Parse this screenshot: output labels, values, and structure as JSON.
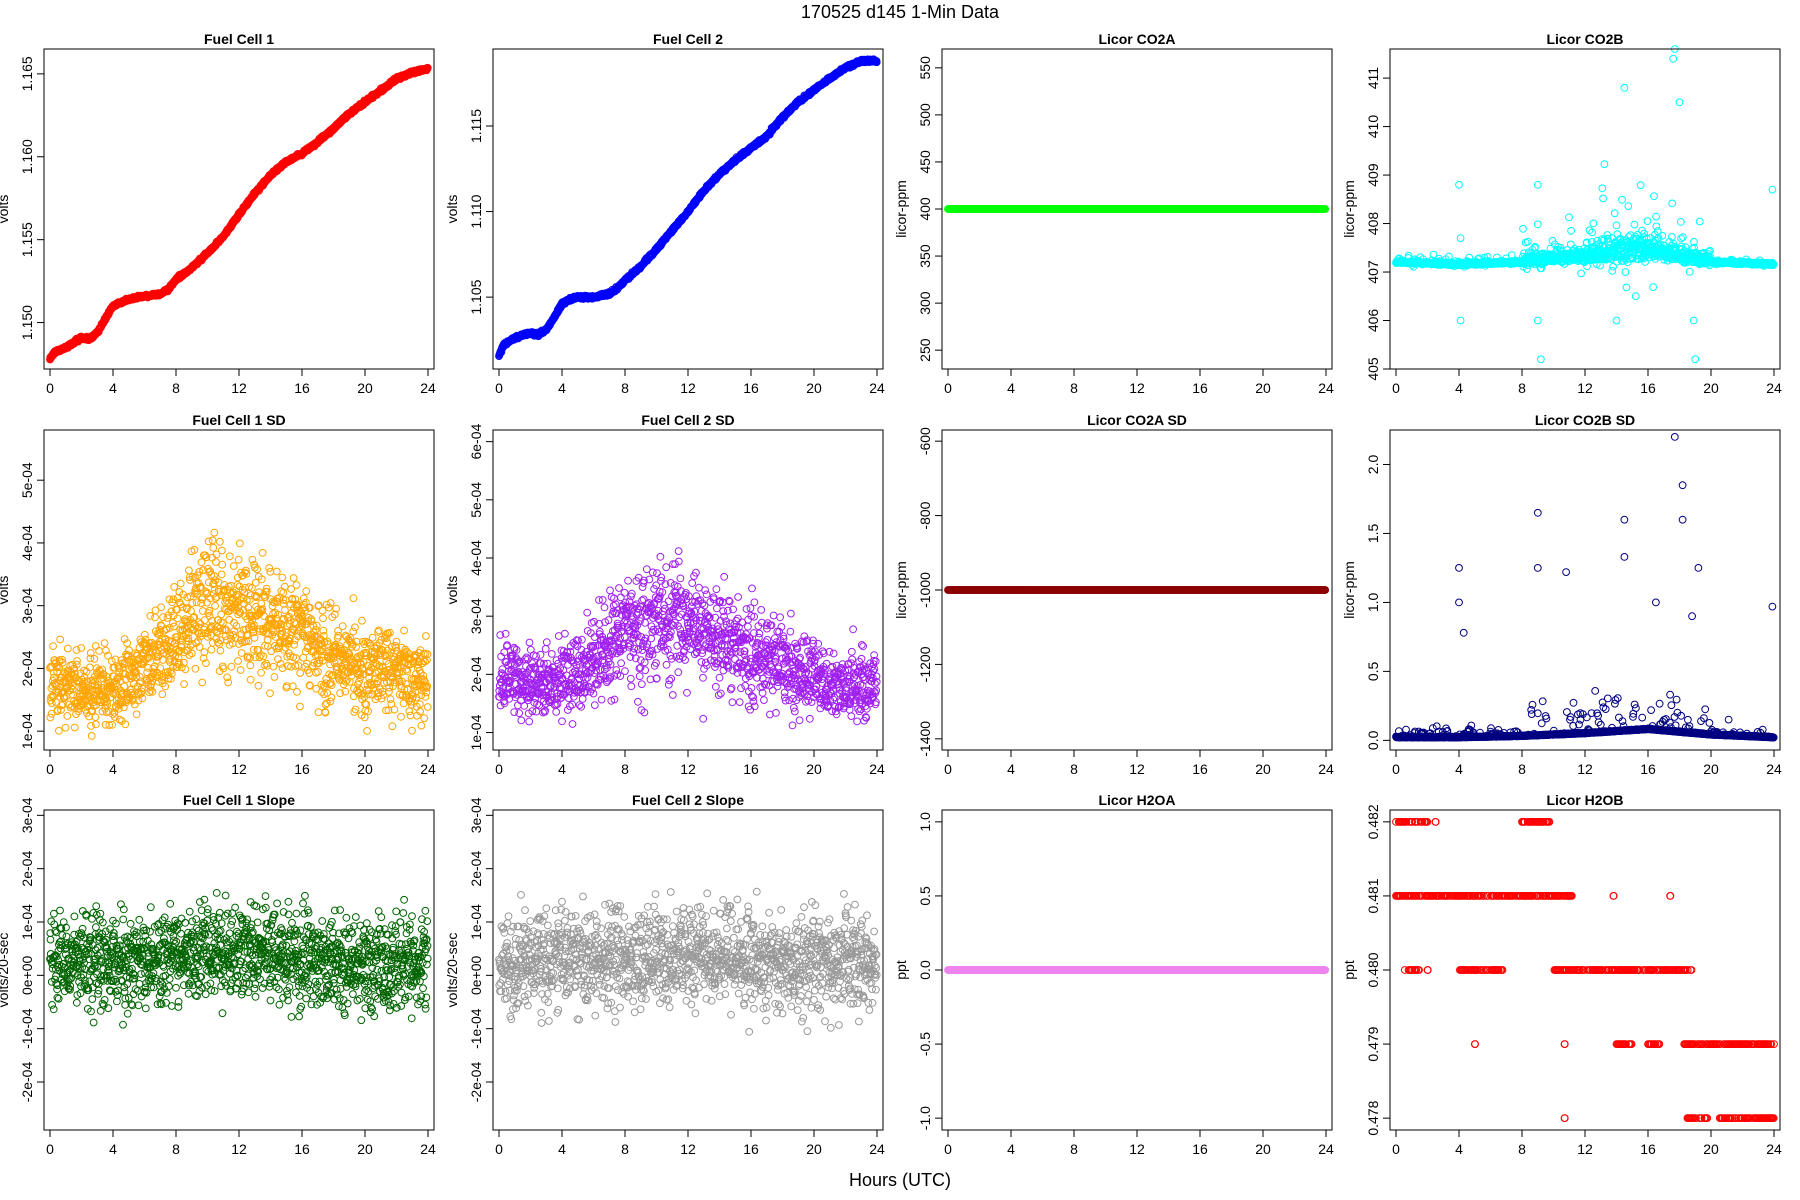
{
  "figure": {
    "title": "170525   d145   1-Min Data",
    "xlabel": "Hours (UTC)"
  },
  "chart_data": [
    {
      "type": "scatter",
      "title": "Fuel Cell 1",
      "ylabel": "volts",
      "color": "#ff0000",
      "xlim": [
        0,
        24
      ],
      "ylim": [
        1.1472,
        1.1665
      ],
      "x_ticks": [
        "0",
        "4",
        "8",
        "12",
        "16",
        "20",
        "24"
      ],
      "y_ticks": [
        "1.150",
        "1.155",
        "1.160",
        "1.165"
      ],
      "y_tick_values": [
        1.15,
        1.155,
        1.16,
        1.165
      ],
      "grid": false,
      "series": [
        {
          "x": [
            0,
            0.3,
            1,
            1.5,
            2,
            2.5,
            3,
            3.5,
            4,
            4.5,
            5,
            6,
            7,
            7.5,
            8,
            9,
            10,
            11,
            12,
            13,
            14,
            15,
            16,
            17,
            18,
            19,
            20,
            21,
            22,
            23,
            24
          ],
          "y": [
            1.1478,
            1.1482,
            1.1485,
            1.1488,
            1.1491,
            1.149,
            1.1494,
            1.1502,
            1.151,
            1.1512,
            1.1514,
            1.1516,
            1.1517,
            1.152,
            1.1526,
            1.1533,
            1.1542,
            1.1552,
            1.1565,
            1.1578,
            1.1589,
            1.1597,
            1.1602,
            1.1609,
            1.1617,
            1.1626,
            1.1633,
            1.164,
            1.1647,
            1.1651,
            1.1653
          ]
        }
      ]
    },
    {
      "type": "scatter",
      "title": "Fuel Cell 2",
      "ylabel": "volts",
      "color": "#0000ff",
      "xlim": [
        0,
        24
      ],
      "ylim": [
        1.1008,
        1.1195
      ],
      "x_ticks": [
        "0",
        "4",
        "8",
        "12",
        "16",
        "20",
        "24"
      ],
      "y_ticks": [
        "1.105",
        "1.110",
        "1.115"
      ],
      "y_tick_values": [
        1.105,
        1.11,
        1.115
      ],
      "grid": false,
      "series": [
        {
          "x": [
            0,
            0.3,
            1,
            1.5,
            2,
            2.5,
            3,
            3.5,
            4,
            4.5,
            5,
            6,
            7,
            7.5,
            8,
            9,
            10,
            11,
            12,
            13,
            14,
            15,
            16,
            17,
            18,
            19,
            20,
            21,
            22,
            23,
            24
          ],
          "y": [
            1.1016,
            1.1022,
            1.1026,
            1.1028,
            1.1029,
            1.1028,
            1.1031,
            1.1038,
            1.1046,
            1.1049,
            1.105,
            1.105,
            1.1052,
            1.1055,
            1.106,
            1.1068,
            1.1078,
            1.1089,
            1.11,
            1.1112,
            1.1122,
            1.113,
            1.1137,
            1.1144,
            1.1155,
            1.1164,
            1.1171,
            1.1178,
            1.1184,
            1.1188,
            1.1188
          ]
        }
      ]
    },
    {
      "type": "scatter",
      "title": "Licor CO2A",
      "ylabel": "licor-ppm",
      "color": "#00ff00",
      "xlim": [
        0,
        24
      ],
      "ylim": [
        230,
        570
      ],
      "x_ticks": [
        "0",
        "4",
        "8",
        "12",
        "16",
        "20",
        "24"
      ],
      "y_ticks": [
        "250",
        "300",
        "350",
        "400",
        "450",
        "500",
        "550"
      ],
      "y_tick_values": [
        250,
        300,
        350,
        400,
        450,
        500,
        550
      ],
      "grid": false,
      "series": [
        {
          "x": [
            0,
            24
          ],
          "y": [
            400,
            400
          ]
        }
      ]
    },
    {
      "type": "scatter",
      "title": "Licor CO2B",
      "ylabel": "licor-ppm",
      "color": "#00ffff",
      "xlim": [
        0,
        24
      ],
      "ylim": [
        405,
        411.6
      ],
      "x_ticks": [
        "0",
        "4",
        "8",
        "12",
        "16",
        "20",
        "24"
      ],
      "y_ticks": [
        "405",
        "406",
        "407",
        "408",
        "409",
        "410",
        "411"
      ],
      "y_tick_values": [
        405,
        406,
        407,
        408,
        409,
        410,
        411
      ],
      "grid": false,
      "series": [
        {
          "x": [
            0,
            4,
            8,
            12,
            16,
            20,
            24
          ],
          "y": [
            407.2,
            407.15,
            407.2,
            407.3,
            407.4,
            407.2,
            407.15
          ]
        }
      ]
    },
    {
      "type": "scatter",
      "title": "Fuel Cell 1 SD",
      "ylabel": "volts",
      "color": "#ffa500",
      "xlim": [
        0,
        24
      ],
      "ylim": [
        7e-05,
        0.00058
      ],
      "x_ticks": [
        "0",
        "4",
        "8",
        "12",
        "16",
        "20",
        "24"
      ],
      "y_ticks": [
        "1e-04",
        "2e-04",
        "3e-04",
        "4e-04",
        "5e-04"
      ],
      "y_tick_values": [
        0.0001,
        0.0002,
        0.0003,
        0.0004,
        0.0005
      ],
      "grid": false,
      "series": [
        {
          "x": [
            0,
            2,
            4,
            6,
            8,
            10,
            12,
            14,
            16,
            18,
            20,
            22,
            24
          ],
          "y": [
            0.00018,
            0.00016,
            0.00017,
            0.0002,
            0.00025,
            0.00031,
            0.00029,
            0.00027,
            0.00025,
            0.00022,
            0.0002,
            0.00019,
            0.00018
          ]
        }
      ]
    },
    {
      "type": "scatter",
      "title": "Fuel Cell 2 SD",
      "ylabel": "volts",
      "color": "#a020f0",
      "xlim": [
        0,
        24
      ],
      "ylim": [
        7e-05,
        0.00062
      ],
      "x_ticks": [
        "0",
        "4",
        "8",
        "12",
        "16",
        "20",
        "24"
      ],
      "y_ticks": [
        "1e-04",
        "2e-04",
        "3e-04",
        "4e-04",
        "5e-04",
        "6e-04"
      ],
      "y_tick_values": [
        0.0001,
        0.0002,
        0.0003,
        0.0004,
        0.0005,
        0.0006
      ],
      "grid": false,
      "series": [
        {
          "x": [
            0,
            2,
            4,
            6,
            8,
            10,
            12,
            14,
            16,
            18,
            20,
            22,
            24
          ],
          "y": [
            0.0002,
            0.00018,
            0.00019,
            0.00022,
            0.00027,
            0.0003,
            0.00029,
            0.00026,
            0.00024,
            0.00022,
            0.00019,
            0.00018,
            0.00018
          ]
        }
      ]
    },
    {
      "type": "scatter",
      "title": "Licor CO2A SD",
      "ylabel": "licor-ppm",
      "color": "#8b0000",
      "xlim": [
        0,
        24
      ],
      "ylim": [
        -1430,
        -570
      ],
      "x_ticks": [
        "0",
        "4",
        "8",
        "12",
        "16",
        "20",
        "24"
      ],
      "y_ticks": [
        "-1400",
        "-1200",
        "-1000",
        "-800",
        "-600"
      ],
      "y_tick_values": [
        -1400,
        -1200,
        -1000,
        -800,
        -600
      ],
      "grid": false,
      "series": [
        {
          "x": [
            0,
            24
          ],
          "y": [
            -1000,
            -1000
          ]
        }
      ]
    },
    {
      "type": "scatter",
      "title": "Licor CO2B SD",
      "ylabel": "licor-ppm",
      "color": "#000080",
      "xlim": [
        0,
        24
      ],
      "ylim": [
        -0.07,
        2.25
      ],
      "x_ticks": [
        "0",
        "4",
        "8",
        "12",
        "16",
        "20",
        "24"
      ],
      "y_ticks": [
        "0.0",
        "0.5",
        "1.0",
        "1.5",
        "2.0"
      ],
      "y_tick_values": [
        0,
        0.5,
        1,
        1.5,
        2
      ],
      "grid": false,
      "series": [
        {
          "x": [
            0,
            4,
            8,
            12,
            16,
            20,
            24
          ],
          "y": [
            0.02,
            0.02,
            0.03,
            0.05,
            0.08,
            0.04,
            0.02
          ]
        }
      ]
    },
    {
      "type": "scatter",
      "title": "Fuel Cell 1 Slope",
      "ylabel": "volts/20-sec",
      "color": "#006400",
      "xlim": [
        0,
        24
      ],
      "ylim": [
        -0.00029,
        0.00031
      ],
      "x_ticks": [
        "0",
        "4",
        "8",
        "12",
        "16",
        "20",
        "24"
      ],
      "y_ticks": [
        "-2e-04",
        "-1e-04",
        "0e+00",
        "1e-04",
        "2e-04",
        "3e-04"
      ],
      "y_tick_values": [
        -0.0002,
        -0.0001,
        0,
        0.0001,
        0.0002,
        0.0003
      ],
      "grid": false,
      "series": [
        {
          "x": [
            0,
            4,
            8,
            12,
            16,
            20,
            24
          ],
          "y": [
            3e-05,
            2e-05,
            4e-05,
            5e-05,
            3e-05,
            2e-05,
            3e-05
          ]
        }
      ]
    },
    {
      "type": "scatter",
      "title": "Fuel Cell 2 Slope",
      "ylabel": "volts/20-sec",
      "color": "#999999",
      "xlim": [
        0,
        24
      ],
      "ylim": [
        -0.00029,
        0.00031
      ],
      "x_ticks": [
        "0",
        "4",
        "8",
        "12",
        "16",
        "20",
        "24"
      ],
      "y_ticks": [
        "-2e-04",
        "-1e-04",
        "0e+00",
        "1e-04",
        "2e-04",
        "3e-04"
      ],
      "y_tick_values": [
        -0.0002,
        -0.0001,
        0,
        0.0001,
        0.0002,
        0.0003
      ],
      "grid": false,
      "series": [
        {
          "x": [
            0,
            4,
            8,
            12,
            16,
            20,
            24
          ],
          "y": [
            2e-05,
            3e-05,
            3e-05,
            4e-05,
            3e-05,
            2e-05,
            2e-05
          ]
        }
      ]
    },
    {
      "type": "scatter",
      "title": "Licor H2OA",
      "ylabel": "ppt",
      "color": "#ee82ee",
      "xlim": [
        0,
        24
      ],
      "ylim": [
        -1.08,
        1.08
      ],
      "x_ticks": [
        "0",
        "4",
        "8",
        "12",
        "16",
        "20",
        "24"
      ],
      "y_ticks": [
        "-1.0",
        "-0.5",
        "0.0",
        "0.5",
        "1.0"
      ],
      "y_tick_values": [
        -1,
        -0.5,
        0,
        0.5,
        1
      ],
      "grid": false,
      "series": [
        {
          "x": [
            0,
            24
          ],
          "y": [
            0,
            0
          ]
        }
      ]
    },
    {
      "type": "scatter",
      "title": "Licor H2OB",
      "ylabel": "ppt",
      "color": "#ff0000",
      "xlim": [
        0,
        24
      ],
      "ylim": [
        0.47784,
        0.48216
      ],
      "x_ticks": [
        "0",
        "4",
        "8",
        "12",
        "16",
        "20",
        "24"
      ],
      "y_ticks": [
        "0.478",
        "0.479",
        "0.480",
        "0.481",
        "0.482"
      ],
      "y_tick_values": [
        0.478,
        0.479,
        0.48,
        0.481,
        0.482
      ],
      "grid": false,
      "series": [
        {
          "x": [
            0,
            1.5,
            4,
            6,
            8,
            10,
            11,
            12,
            14,
            16,
            18,
            20,
            22,
            24
          ],
          "y": [
            0.481,
            0.481,
            0.481,
            0.48,
            0.482,
            0.481,
            0.48,
            0.48,
            0.48,
            0.479,
            0.479,
            0.478,
            0.478,
            0.479
          ]
        }
      ]
    }
  ]
}
